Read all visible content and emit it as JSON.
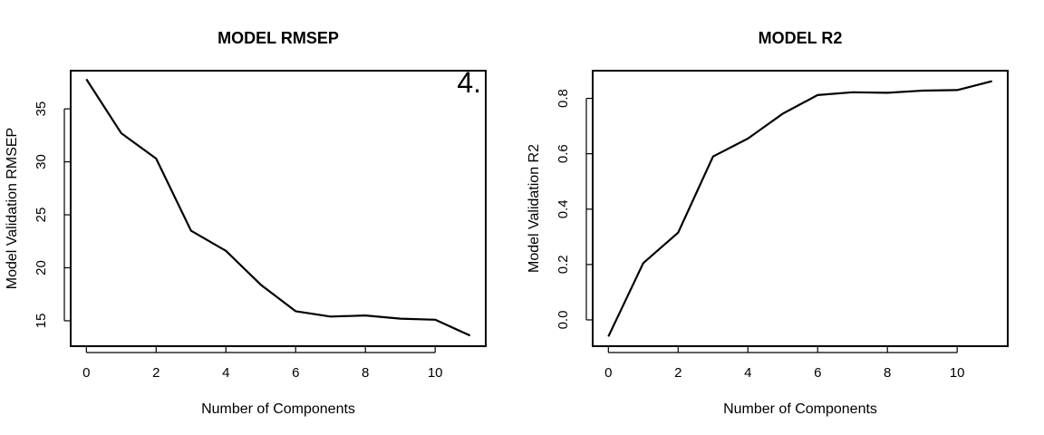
{
  "chart_data": [
    {
      "type": "line",
      "title": "MODEL RMSEP",
      "xlabel": "Number of Components",
      "ylabel": "Model Validation RMSEP",
      "annotation": "4.",
      "x": [
        0,
        1,
        2,
        3,
        4,
        5,
        6,
        7,
        8,
        9,
        10,
        11
      ],
      "series": [
        {
          "values": [
            37.8,
            32.7,
            30.3,
            23.5,
            21.6,
            18.4,
            15.9,
            15.4,
            15.5,
            15.2,
            15.1,
            13.6
          ]
        }
      ],
      "xlim": [
        -0.45,
        11.45
      ],
      "ylim": [
        12.6,
        38.6
      ],
      "xticks": [
        0,
        2,
        4,
        6,
        8,
        10
      ],
      "yticks": [
        15,
        20,
        25,
        30,
        35
      ],
      "xtick_labels": [
        "0",
        "2",
        "4",
        "6",
        "8",
        "10"
      ],
      "ytick_labels": [
        "15",
        "20",
        "25",
        "30",
        "35"
      ],
      "grid": false
    },
    {
      "type": "line",
      "title": "MODEL R2",
      "xlabel": "Number of Components",
      "ylabel": "Model Validation R2",
      "x": [
        0,
        1,
        2,
        3,
        4,
        5,
        6,
        7,
        8,
        9,
        10,
        11
      ],
      "series": [
        {
          "values": [
            -0.06,
            0.205,
            0.315,
            0.59,
            0.655,
            0.745,
            0.812,
            0.822,
            0.82,
            0.828,
            0.83,
            0.862
          ]
        }
      ],
      "xlim": [
        -0.45,
        11.45
      ],
      "ylim": [
        -0.095,
        0.9
      ],
      "xticks": [
        0,
        2,
        4,
        6,
        8,
        10
      ],
      "yticks": [
        0.0,
        0.2,
        0.4,
        0.6,
        0.8
      ],
      "xtick_labels": [
        "0",
        "2",
        "4",
        "6",
        "8",
        "10"
      ],
      "ytick_labels": [
        "0.0",
        "0.2",
        "0.4",
        "0.6",
        "0.8"
      ],
      "grid": false
    }
  ]
}
